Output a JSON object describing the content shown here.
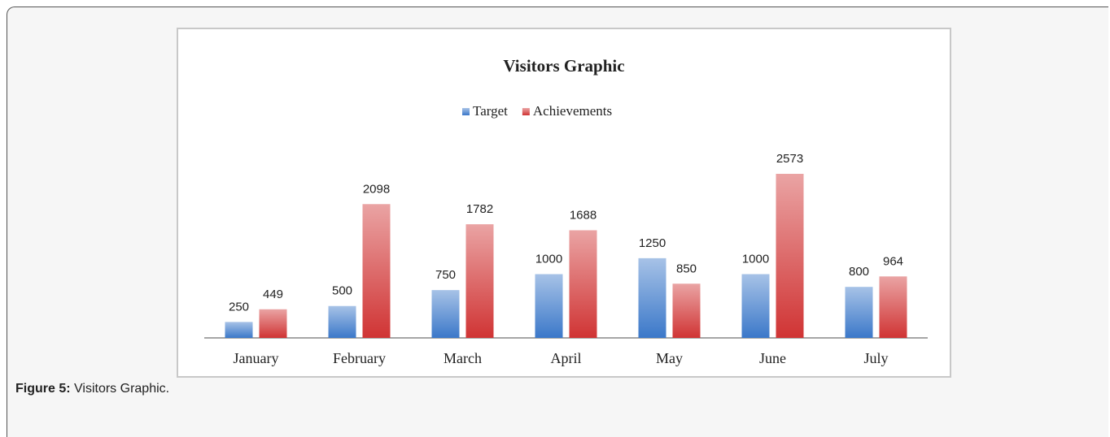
{
  "chart_data": {
    "type": "bar",
    "title": "Visitors Graphic",
    "categories": [
      "January",
      "February",
      "March",
      "April",
      "May",
      "June",
      "July"
    ],
    "series": [
      {
        "name": "Target",
        "color": "#3b78c9",
        "values": [
          250,
          500,
          750,
          1000,
          1250,
          1000,
          800
        ]
      },
      {
        "name": "Achievements",
        "color": "#d03434",
        "values": [
          449,
          2098,
          1782,
          1688,
          850,
          2573,
          964
        ]
      }
    ],
    "legend": "top"
  },
  "caption": {
    "label": "Figure 5:",
    "text": "Visitors Graphic."
  }
}
